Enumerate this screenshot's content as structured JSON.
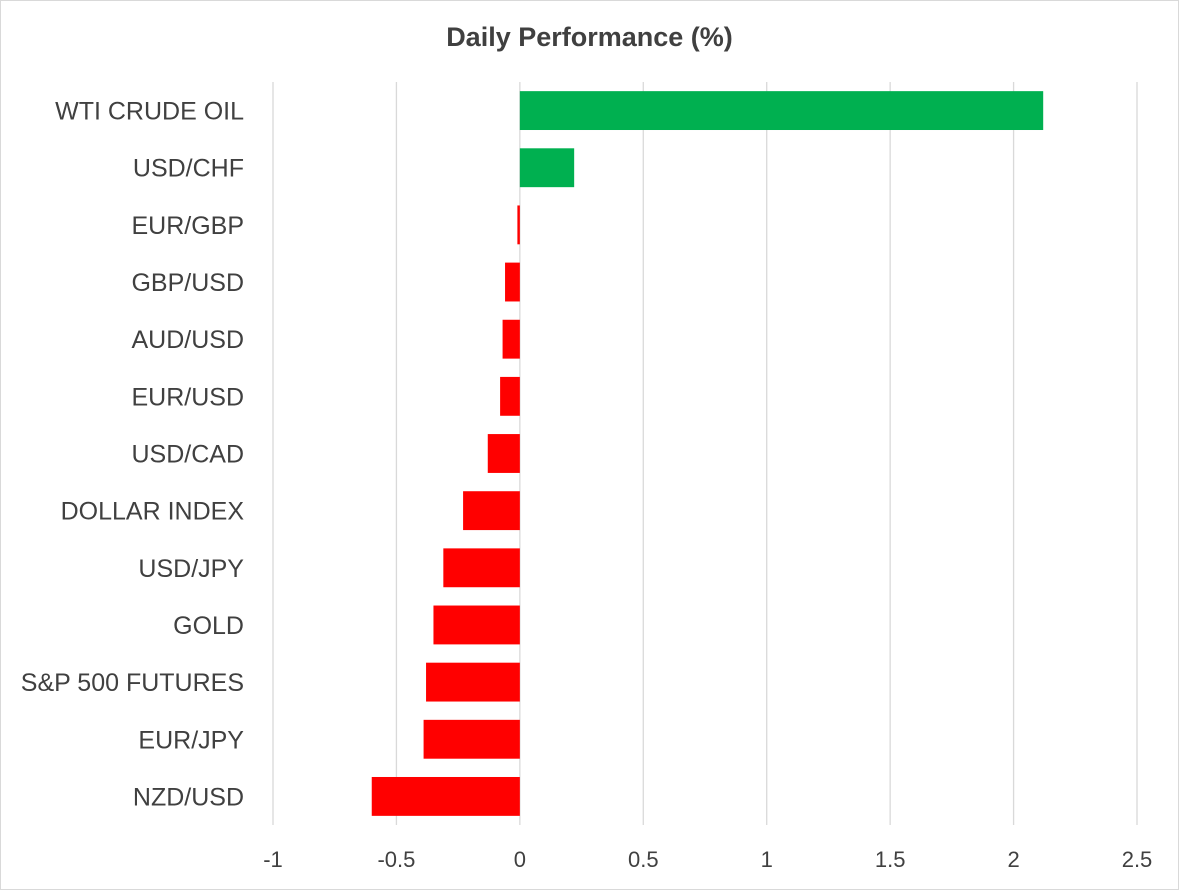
{
  "chart_data": {
    "type": "bar",
    "orientation": "horizontal",
    "title": "Daily Performance (%)",
    "xlabel": "",
    "ylabel": "",
    "categories": [
      "WTI CRUDE OIL",
      "USD/CHF",
      "EUR/GBP",
      "GBP/USD",
      "AUD/USD",
      "EUR/USD",
      "USD/CAD",
      "DOLLAR INDEX",
      "USD/JPY",
      "GOLD",
      "S&P 500 FUTURES",
      "EUR/JPY",
      "NZD/USD"
    ],
    "values": [
      2.12,
      0.22,
      -0.01,
      -0.06,
      -0.07,
      -0.08,
      -0.13,
      -0.23,
      -0.31,
      -0.35,
      -0.38,
      -0.39,
      -0.6
    ],
    "xlim": [
      -1,
      2.5
    ],
    "x_ticks": [
      "-1",
      "-0.5",
      "0",
      "0.5",
      "1",
      "1.5",
      "2",
      "2.5"
    ],
    "tick_values": [
      -1,
      -0.5,
      0,
      0.5,
      1,
      1.5,
      2,
      2.5
    ],
    "grid": true,
    "legend": "none",
    "colors": {
      "positive": "#00b050",
      "negative": "#ff0000",
      "gridline": "#d9d9d9",
      "text": "#404040"
    }
  }
}
